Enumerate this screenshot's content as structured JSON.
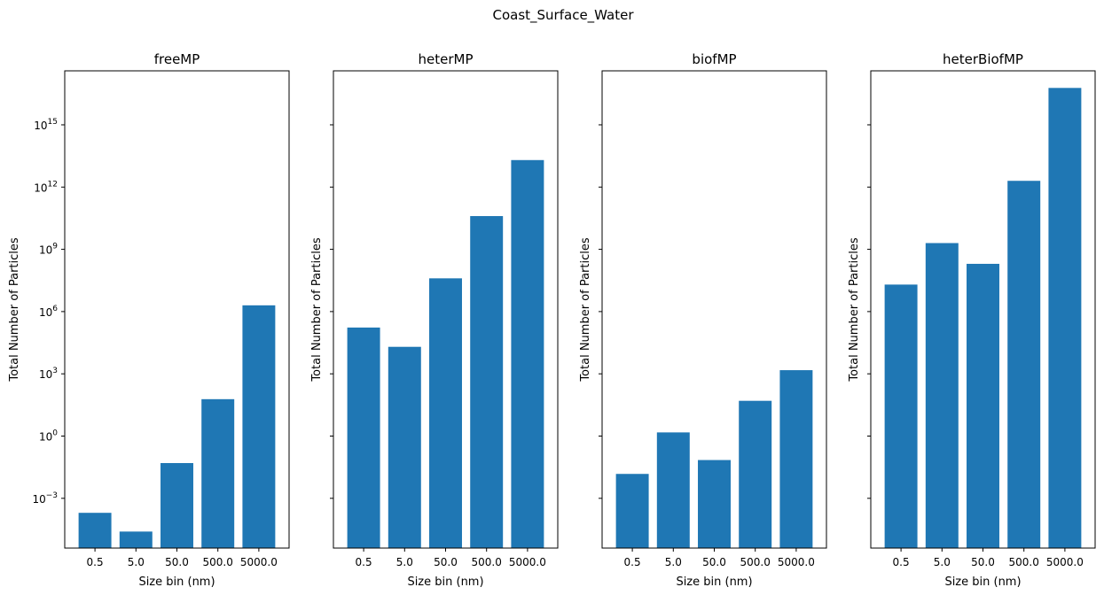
{
  "suptitle": "Coast_Surface_Water",
  "colors": {
    "bar": "#1f77b4",
    "axis": "#000000",
    "background": "#ffffff"
  },
  "chart_data": [
    {
      "type": "bar",
      "title": "freeMP",
      "xlabel": "Size bin (nm)",
      "ylabel": "Total Number of Particles",
      "categories": [
        "0.5",
        "5.0",
        "50.0",
        "500.0",
        "5000.0"
      ],
      "values": [
        0.0002,
        2.5e-05,
        0.05,
        60,
        2000000
      ],
      "yscale": "log",
      "ylim": [
        4e-06,
        4e+17
      ],
      "yticks": [
        0.001,
        1,
        1000,
        1000000,
        1000000000,
        1000000000000,
        1000000000000000
      ],
      "ytick_labels": [
        {
          "base": "10",
          "exp": "−3"
        },
        {
          "base": "10",
          "exp": "0"
        },
        {
          "base": "10",
          "exp": "3"
        },
        {
          "base": "10",
          "exp": "6"
        },
        {
          "base": "10",
          "exp": "9"
        },
        {
          "base": "10",
          "exp": "12"
        },
        {
          "base": "10",
          "exp": "15"
        }
      ],
      "show_ytick_labels": true,
      "grid": false
    },
    {
      "type": "bar",
      "title": "heterMP",
      "xlabel": "Size bin (nm)",
      "ylabel": "Total Number of Particles",
      "categories": [
        "0.5",
        "5.0",
        "50.0",
        "500.0",
        "5000.0"
      ],
      "values": [
        170000,
        20000,
        40000000,
        40000000000,
        20000000000000
      ],
      "yscale": "log",
      "ylim": [
        4e-06,
        4e+17
      ],
      "show_ytick_labels": false,
      "grid": false
    },
    {
      "type": "bar",
      "title": "biofMP",
      "xlabel": "Size bin (nm)",
      "ylabel": "Total Number of Particles",
      "categories": [
        "0.5",
        "5.0",
        "50.0",
        "500.0",
        "5000.0"
      ],
      "values": [
        0.015,
        1.5,
        0.07,
        50,
        1500
      ],
      "yscale": "log",
      "ylim": [
        4e-06,
        4e+17
      ],
      "show_ytick_labels": false,
      "grid": false
    },
    {
      "type": "bar",
      "title": "heterBiofMP",
      "xlabel": "Size bin (nm)",
      "ylabel": "Total Number of Particles",
      "categories": [
        "0.5",
        "5.0",
        "50.0",
        "500.0",
        "5000.0"
      ],
      "values": [
        20000000,
        2000000000,
        200000000,
        2000000000000,
        60000000000000000
      ],
      "yscale": "log",
      "ylim": [
        4e-06,
        4e+17
      ],
      "show_ytick_labels": false,
      "grid": false
    }
  ]
}
